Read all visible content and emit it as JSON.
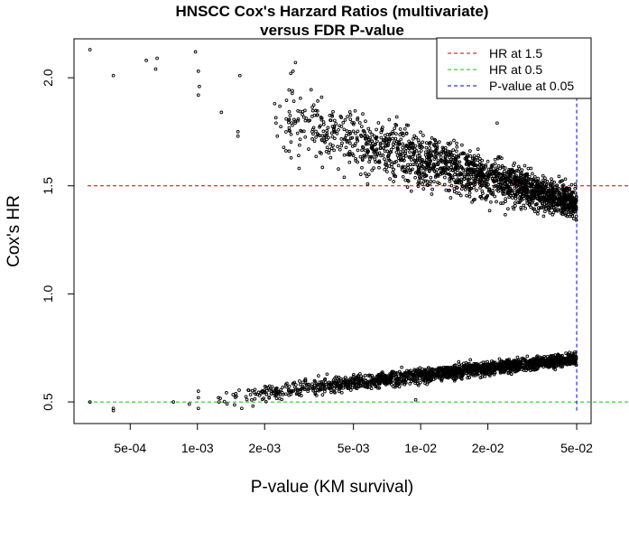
{
  "chart_data": {
    "type": "scatter",
    "title": [
      "HNSCC Cox's Harzard Ratios (multivariate)",
      "versus FDR P-value"
    ],
    "xlabel": "P-value (KM survival)",
    "ylabel": "Cox's HR",
    "x_scale": "log",
    "xlim": [
      0.00028,
      0.058
    ],
    "ylim": [
      0.4,
      2.18
    ],
    "x_ticks": [
      {
        "value": 0.0005,
        "label": "5e-04"
      },
      {
        "value": 0.001,
        "label": "1e-03"
      },
      {
        "value": 0.002,
        "label": "2e-03"
      },
      {
        "value": 0.005,
        "label": "5e-03"
      },
      {
        "value": 0.01,
        "label": "1e-02"
      },
      {
        "value": 0.02,
        "label": "2e-02"
      },
      {
        "value": 0.05,
        "label": "5e-02"
      }
    ],
    "y_ticks": [
      {
        "value": 0.5,
        "label": "0.5"
      },
      {
        "value": 1.0,
        "label": "1.0"
      },
      {
        "value": 1.5,
        "label": "1.5"
      },
      {
        "value": 2.0,
        "label": "2.0"
      }
    ],
    "reference_lines": [
      {
        "name": "HR at 1.5",
        "orientation": "horizontal",
        "value": 1.5,
        "color": "#cc0000"
      },
      {
        "name": "HR at 0.5",
        "orientation": "horizontal",
        "value": 0.5,
        "color": "#00cc00"
      },
      {
        "name": "P-value at 0.05",
        "orientation": "vertical",
        "value": 0.05,
        "color": "#0000cc"
      }
    ],
    "legend": {
      "position": "top-right",
      "entries": [
        "HR at 1.5",
        "HR at 0.5",
        "P-value at 0.05"
      ]
    },
    "series": [
      {
        "marker": "open-circle",
        "color": "#000000",
        "points": [
          [
            0.00033,
            2.13
          ],
          [
            0.00042,
            2.01
          ],
          [
            0.00059,
            2.08
          ],
          [
            0.00066,
            2.09
          ],
          [
            0.00065,
            2.04
          ],
          [
            0.00098,
            2.12
          ],
          [
            0.00101,
            2.03
          ],
          [
            0.00102,
            1.96
          ],
          [
            0.00101,
            1.92
          ],
          [
            0.00128,
            1.84
          ],
          [
            0.00155,
            2.01
          ],
          [
            0.00152,
            1.75
          ],
          [
            0.00152,
            1.73
          ],
          [
            0.00222,
            1.88
          ],
          [
            0.00225,
            1.79
          ],
          [
            0.00228,
            1.73
          ],
          [
            0.00262,
            2.02
          ],
          [
            0.00268,
            2.03
          ],
          [
            0.00275,
            2.07
          ],
          [
            0.00284,
            1.64
          ],
          [
            0.00295,
            1.83
          ],
          [
            0.00315,
            1.67
          ],
          [
            0.0033,
            1.74
          ],
          [
            0.0036,
            1.91
          ],
          [
            0.0041,
            1.77
          ],
          [
            0.0047,
            1.82
          ],
          [
            0.0055,
            1.68
          ],
          [
            0.0062,
            1.73
          ],
          [
            0.0072,
            1.64
          ],
          [
            0.0082,
            1.62
          ],
          [
            0.0095,
            1.56
          ],
          [
            0.011,
            1.51
          ],
          [
            0.013,
            1.48
          ],
          [
            0.015,
            1.56
          ],
          [
            0.018,
            1.52
          ],
          [
            0.021,
            1.46
          ],
          [
            0.022,
            1.79
          ],
          [
            0.024,
            1.44
          ],
          [
            0.027,
            1.5
          ],
          [
            0.03,
            1.42
          ],
          [
            0.034,
            1.47
          ],
          [
            0.038,
            1.4
          ],
          [
            0.042,
            1.44
          ],
          [
            0.046,
            1.4
          ],
          [
            0.049,
            1.38
          ],
          [
            0.00033,
            0.5
          ],
          [
            0.00042,
            0.46
          ],
          [
            0.00042,
            0.47
          ],
          [
            0.00078,
            0.5
          ],
          [
            0.00092,
            0.49
          ],
          [
            0.00101,
            0.52
          ],
          [
            0.00101,
            0.55
          ],
          [
            0.00101,
            0.47
          ],
          [
            0.00125,
            0.5
          ],
          [
            0.00158,
            0.47
          ],
          [
            0.00175,
            0.51
          ],
          [
            0.0019,
            0.53
          ],
          [
            0.0022,
            0.55
          ],
          [
            0.0025,
            0.57
          ],
          [
            0.0029,
            0.55
          ],
          [
            0.0033,
            0.56
          ],
          [
            0.004,
            0.59
          ],
          [
            0.0048,
            0.6
          ],
          [
            0.0058,
            0.58
          ],
          [
            0.007,
            0.62
          ],
          [
            0.0085,
            0.63
          ],
          [
            0.0095,
            0.51
          ],
          [
            0.011,
            0.64
          ],
          [
            0.013,
            0.66
          ],
          [
            0.016,
            0.66
          ],
          [
            0.019,
            0.67
          ],
          [
            0.023,
            0.69
          ],
          [
            0.027,
            0.68
          ],
          [
            0.032,
            0.7
          ],
          [
            0.037,
            0.71
          ],
          [
            0.042,
            0.7
          ],
          [
            0.046,
            0.72
          ],
          [
            0.049,
            0.73
          ]
        ],
        "approximate_trend": "Dense cloud of several thousand points; upper band runs from HR ≈ 2.1 at p ≈ 3e-04 down to HR ≈ 1.4 at p = 0.05, lower band rises from HR ≈ 0.5 at p ≈ 3e-04 to HR ≈ 0.72 at p = 0.05"
      }
    ]
  }
}
